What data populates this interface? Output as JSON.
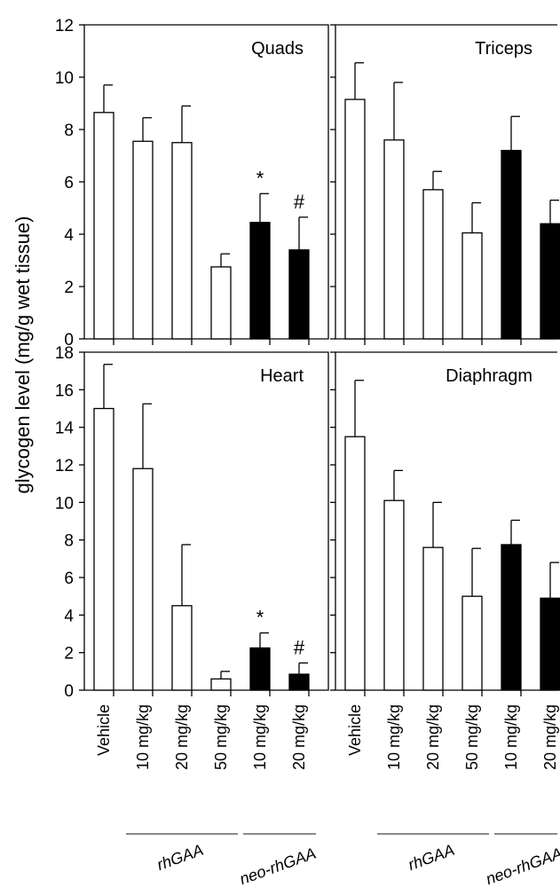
{
  "figure": {
    "ylabel": "glycogen level (mg/g wet tissue)"
  },
  "colors": {
    "open_bar": "#ffffff",
    "filled_bar": "#000000",
    "axis": "#000000"
  },
  "x_axis": {
    "categories": [
      "Vehicle",
      "10 mg/kg",
      "20 mg/kg",
      "50 mg/kg",
      "10 mg/kg",
      "20 mg/kg"
    ],
    "groups": [
      {
        "label": "rhGAA",
        "span": [
          1,
          3
        ]
      },
      {
        "label": "neo-rhGAA",
        "span": [
          4,
          5
        ]
      }
    ]
  },
  "chart_data": [
    {
      "type": "bar",
      "title": "Quads",
      "ylim": [
        0,
        12
      ],
      "yticks": [
        0,
        2,
        4,
        6,
        8,
        10,
        12
      ],
      "categories": [
        "Vehicle",
        "10 mg/kg",
        "20 mg/kg",
        "50 mg/kg",
        "10 mg/kg",
        "20 mg/kg"
      ],
      "values": [
        8.65,
        7.55,
        7.5,
        2.75,
        4.45,
        3.4
      ],
      "errors": [
        1.05,
        0.9,
        1.4,
        0.5,
        1.1,
        1.25
      ],
      "fill": [
        "open",
        "open",
        "open",
        "open",
        "filled",
        "filled"
      ],
      "annotations": [
        "",
        "",
        "",
        "",
        "*",
        "#"
      ]
    },
    {
      "type": "bar",
      "title": "Triceps",
      "ylim": [
        0,
        12
      ],
      "yticks": [
        0,
        2,
        4,
        6,
        8,
        10,
        12
      ],
      "categories": [
        "Vehicle",
        "10 mg/kg",
        "20 mg/kg",
        "50 mg/kg",
        "10 mg/kg",
        "20 mg/kg"
      ],
      "values": [
        9.15,
        7.6,
        5.7,
        4.05,
        7.2,
        4.4
      ],
      "errors": [
        1.4,
        2.2,
        0.7,
        1.15,
        1.3,
        0.9
      ],
      "fill": [
        "open",
        "open",
        "open",
        "open",
        "filled",
        "filled"
      ],
      "annotations": [
        "",
        "",
        "",
        "",
        "",
        ""
      ]
    },
    {
      "type": "bar",
      "title": "Heart",
      "ylim": [
        0,
        18
      ],
      "yticks": [
        0,
        2,
        4,
        6,
        8,
        10,
        12,
        14,
        16,
        18
      ],
      "categories": [
        "Vehicle",
        "10 mg/kg",
        "20 mg/kg",
        "50 mg/kg",
        "10 mg/kg",
        "20 mg/kg"
      ],
      "values": [
        15.0,
        11.8,
        4.5,
        0.6,
        2.25,
        0.85
      ],
      "errors": [
        2.35,
        3.45,
        3.25,
        0.4,
        0.8,
        0.6
      ],
      "fill": [
        "open",
        "open",
        "open",
        "open",
        "filled",
        "filled"
      ],
      "annotations": [
        "",
        "",
        "",
        "",
        "*",
        "#"
      ]
    },
    {
      "type": "bar",
      "title": "Diaphragm",
      "ylim": [
        0,
        18
      ],
      "yticks": [
        0,
        2,
        4,
        6,
        8,
        10,
        12,
        14,
        16,
        18
      ],
      "categories": [
        "Vehicle",
        "10 mg/kg",
        "20 mg/kg",
        "50 mg/kg",
        "10 mg/kg",
        "20 mg/kg"
      ],
      "values": [
        13.5,
        10.1,
        7.6,
        5.0,
        7.75,
        4.9
      ],
      "errors": [
        3.0,
        1.6,
        2.4,
        2.55,
        1.3,
        1.9
      ],
      "fill": [
        "open",
        "open",
        "open",
        "open",
        "filled",
        "filled"
      ],
      "annotations": [
        "",
        "",
        "",
        "",
        "",
        ""
      ]
    }
  ]
}
